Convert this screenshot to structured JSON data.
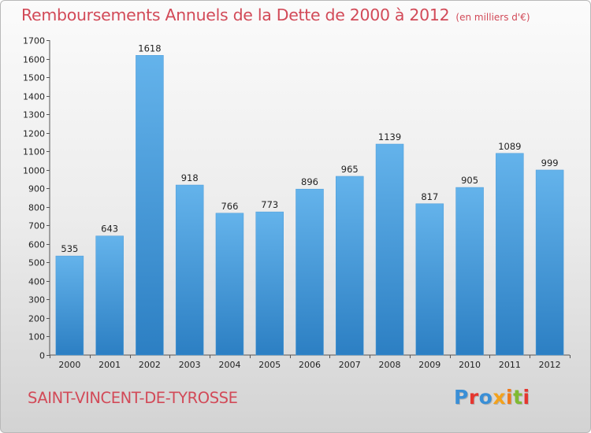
{
  "title": "Remboursements Annuels de la Dette de 2000 à 2012",
  "unit": "(en milliers d'€)",
  "city": "SAINT-VINCENT-DE-TYROSSE",
  "logo": {
    "text": "Proxiti",
    "letter_colors": [
      "#3a8fd6",
      "#e5362f",
      "#3a8fd6",
      "#f3a21c",
      "#ef7a1a",
      "#7fba32",
      "#e5362f"
    ]
  },
  "colors": {
    "bar_light": "#64b3eb",
    "bar_dark": "#2c7fc3",
    "title": "#d24a58",
    "city": "#d24a58"
  },
  "chart_data": {
    "type": "bar",
    "title": "Remboursements Annuels de la Dette de 2000 à 2012",
    "xlabel": "",
    "ylabel": "",
    "categories": [
      "2000",
      "2001",
      "2002",
      "2003",
      "2004",
      "2005",
      "2006",
      "2007",
      "2008",
      "2009",
      "2010",
      "2011",
      "2012"
    ],
    "values": [
      535,
      643,
      1618,
      918,
      766,
      773,
      896,
      965,
      1139,
      817,
      905,
      1089,
      999
    ],
    "ylim": [
      0,
      1700
    ],
    "yticks": [
      0,
      100,
      200,
      300,
      400,
      500,
      600,
      700,
      800,
      900,
      1000,
      1100,
      1200,
      1300,
      1400,
      1500,
      1600,
      1700
    ],
    "grid": false,
    "data_labels": true
  }
}
